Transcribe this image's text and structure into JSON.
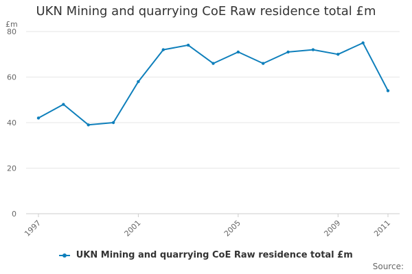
{
  "title": "UKN Mining and quarrying CoE Raw residence total £m",
  "source_label": "Source:",
  "colors": {
    "series": "#0e7fbb",
    "grid": "#e6e6e6",
    "text": "#333333",
    "tick": "#666666"
  },
  "chart_data": {
    "type": "line",
    "title": "UKN Mining and quarrying CoE Raw residence total £m",
    "ylabel": "£m",
    "xlabel": "",
    "ylim": [
      0,
      80
    ],
    "yticks": [
      0,
      20,
      40,
      60,
      80
    ],
    "x": [
      1997,
      1998,
      1999,
      2000,
      2001,
      2002,
      2003,
      2004,
      2005,
      2006,
      2007,
      2008,
      2009,
      2010,
      2011
    ],
    "xtick_labels": [
      "1997",
      "2001",
      "2005",
      "2009",
      "2011"
    ],
    "series": [
      {
        "name": "UKN Mining and quarrying CoE Raw residence total £m",
        "values": [
          42,
          48,
          39,
          40,
          58,
          72,
          74,
          66,
          71,
          66,
          71,
          72,
          70,
          75,
          54
        ]
      }
    ],
    "grid": true,
    "legend_position": "bottom"
  }
}
